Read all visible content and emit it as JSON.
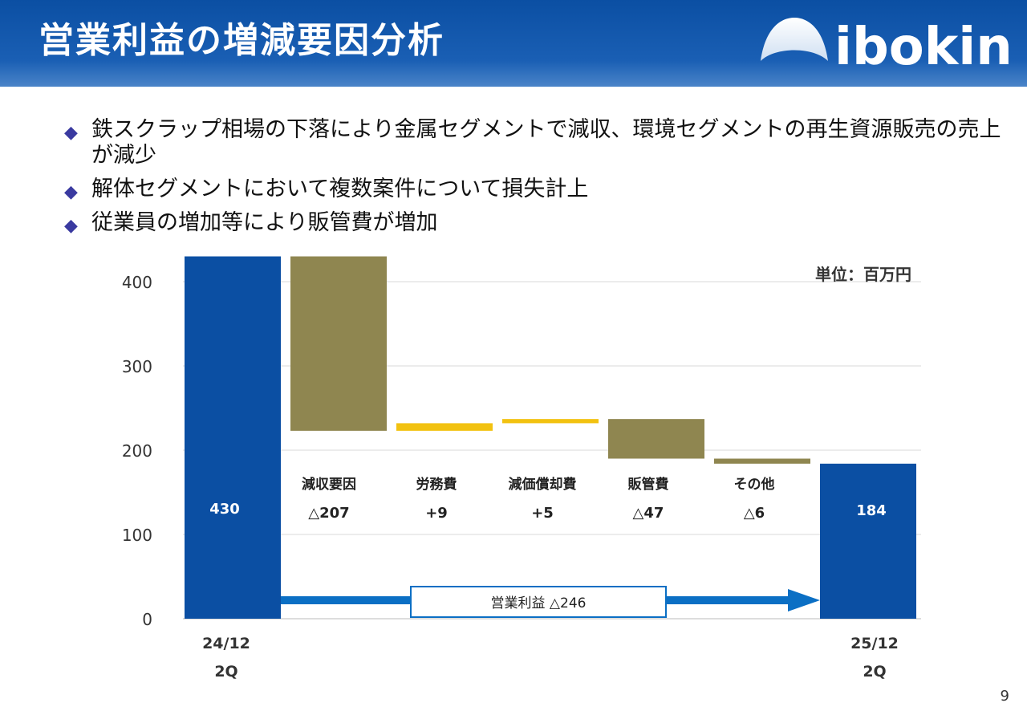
{
  "title": "営業利益の増減要因分析",
  "logo_text": "ibokin",
  "bullets": [
    "鉄スクラップ相場の下落により金属セグメントで減収、環境セグメントの再生資源販売の売上が減少",
    "解体セグメントにおいて複数案件について損失計上",
    "従業員の増加等により販管費が増加"
  ],
  "bullet_mark": "◆",
  "unit_label": "単位：百万円",
  "page_number": "9",
  "colors": {
    "header": "#0b4fa3",
    "total_bar": "#0b4fa3",
    "decrease_bar": "#8f8650",
    "increase_bar": "#f2c211"
  },
  "chart_data": {
    "type": "bar",
    "subtype": "waterfall",
    "ylim": [
      0,
      430
    ],
    "yticks": [
      0,
      100,
      200,
      300,
      400
    ],
    "grid": true,
    "start": {
      "label_line1": "24/12",
      "label_line2": "2Q",
      "value": 430,
      "value_label": "430"
    },
    "end": {
      "label_line1": "25/12",
      "label_line2": "2Q",
      "value": 184,
      "value_label": "184"
    },
    "steps": [
      {
        "name": "減収要因",
        "value_label": "△207",
        "from": 430,
        "to": 223,
        "kind": "decrease"
      },
      {
        "name": "労務費",
        "value_label": "+9",
        "from": 223,
        "to": 232,
        "kind": "increase"
      },
      {
        "name": "減価償却費",
        "value_label": "+5",
        "from": 232,
        "to": 237,
        "kind": "increase"
      },
      {
        "name": "販管費",
        "value_label": "△47",
        "from": 237,
        "to": 190,
        "kind": "decrease"
      },
      {
        "name": "その他",
        "value_label": "△6",
        "from": 190,
        "to": 184,
        "kind": "decrease"
      }
    ],
    "arrow_label": "営業利益 △246"
  }
}
